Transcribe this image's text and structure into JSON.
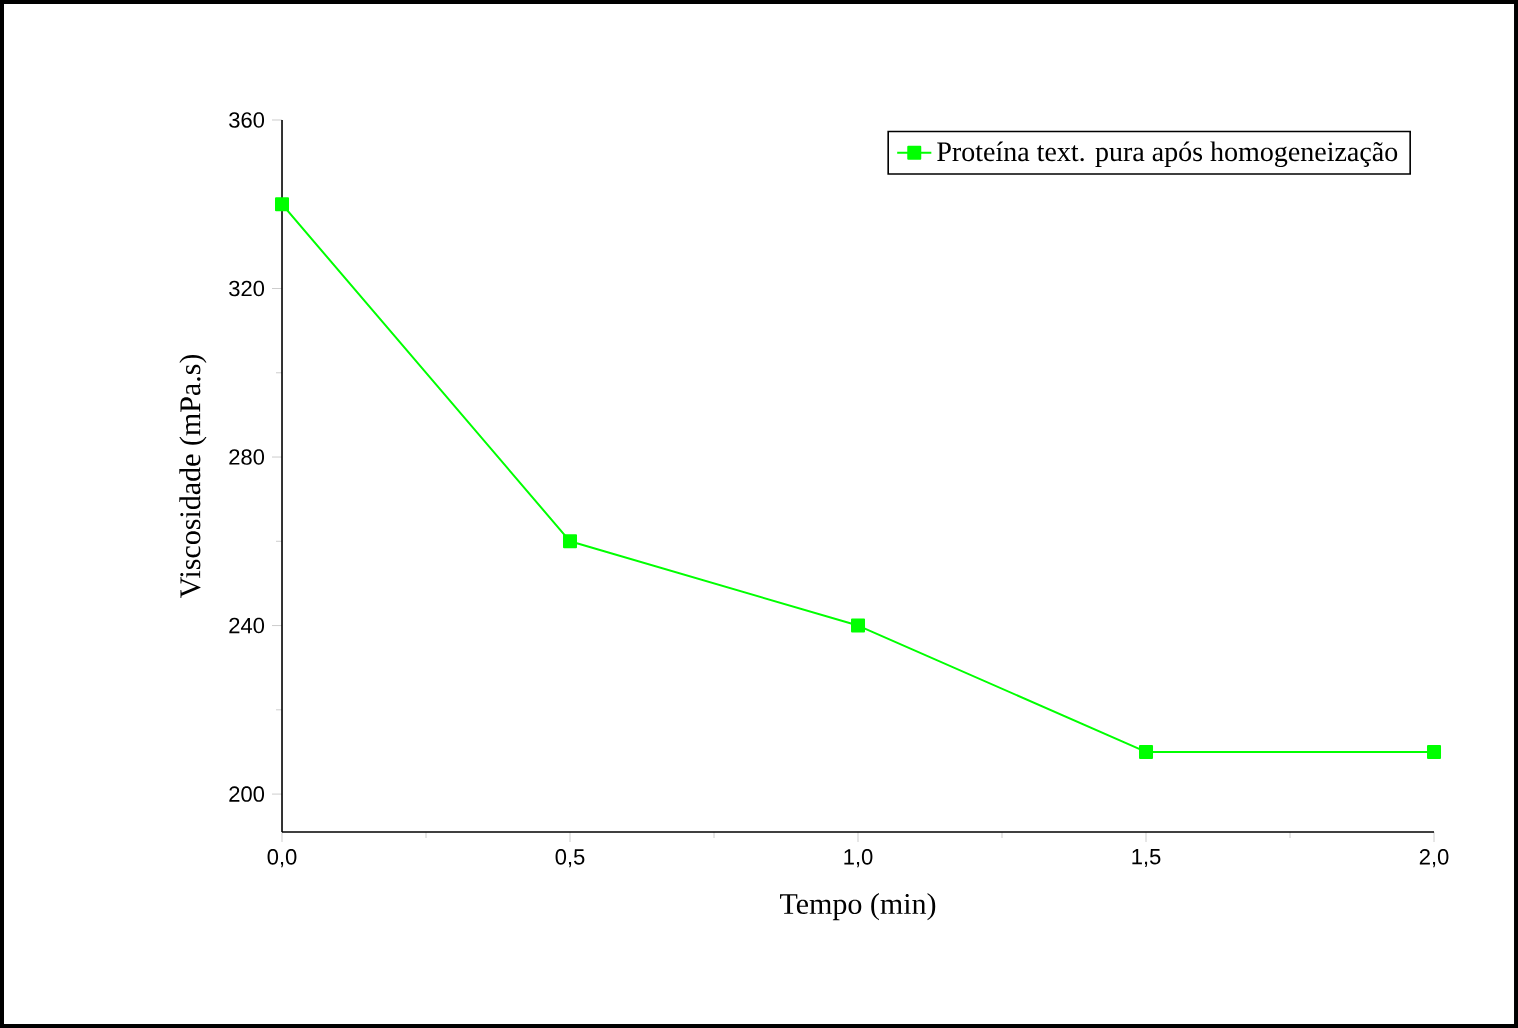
{
  "chart_data": {
    "type": "line",
    "xlabel": "Tempo (min)",
    "ylabel": "Viscosidade (mPa.s)",
    "x": [
      0,
      0.5,
      1.0,
      1.5,
      2.0
    ],
    "series": [
      {
        "name": "Proteína text. pura após homogeneização",
        "color": "#00ff00",
        "values": [
          340,
          260,
          240,
          210,
          210
        ]
      }
    ],
    "xlim": [
      0,
      2
    ],
    "ylim": [
      191,
      360
    ],
    "xticks": [
      {
        "value": 0,
        "label": "0,0"
      },
      {
        "value": 0.5,
        "label": "0,5"
      },
      {
        "value": 1.0,
        "label": "1,0"
      },
      {
        "value": 1.5,
        "label": "1,5"
      },
      {
        "value": 2.0,
        "label": "2,0"
      }
    ],
    "yticks": [
      200,
      240,
      280,
      320,
      360
    ],
    "grid": false,
    "legend": "top right",
    "marker": "square",
    "line_style": "solid"
  }
}
